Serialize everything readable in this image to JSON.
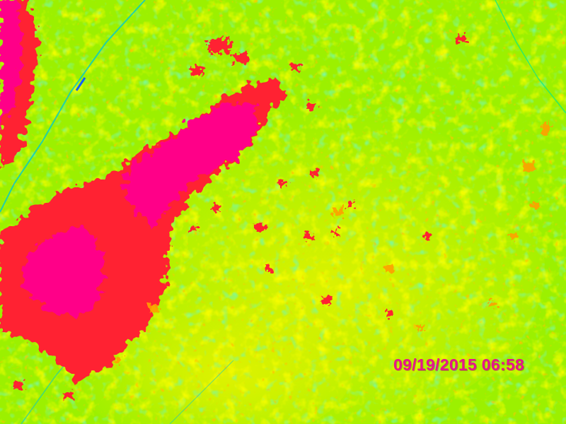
{
  "camera": {
    "timestamp": "09/19/2015 06:58"
  },
  "palette": {
    "base_green": "#9cf000",
    "lime": "#c6f500",
    "yellow": "#f0f000",
    "light_green": "#50f040",
    "aqua": "#00e890",
    "cyan_line": "#00c8d0",
    "blue_line": "#1060ff",
    "orange": "#ffa000",
    "red": "#ff2030",
    "magenta": "#ff0088",
    "timestamp_color": "#e8148c"
  }
}
